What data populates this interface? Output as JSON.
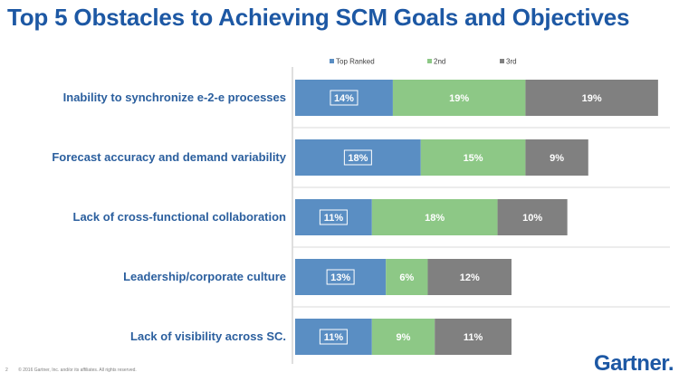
{
  "title": "Top 5 Obstacles to Achieving SCM Goals and Objectives",
  "footer": {
    "page": "2",
    "copyright": "© 2016 Gartner, Inc. and/or its affiliates. All rights reserved."
  },
  "brand": "Gartner.",
  "colors": {
    "top_ranked": "#5a8ec3",
    "second": "#8dc886",
    "third": "#808080",
    "title": "#1d58a4"
  },
  "chart_data": {
    "type": "bar",
    "orientation": "horizontal",
    "stacked": true,
    "categories": [
      "Inability to synchronize e-2-e processes",
      "Forecast accuracy and demand variability",
      "Lack of cross-functional collaboration",
      "Leadership/corporate culture",
      "Lack of visibility across SC."
    ],
    "series": [
      {
        "name": "Top Ranked",
        "values": [
          14,
          18,
          11,
          13,
          11
        ],
        "labels": [
          "14%",
          "18%",
          "11%",
          "13%",
          "11%"
        ],
        "color": "#5a8ec3"
      },
      {
        "name": "2nd",
        "values": [
          19,
          15,
          18,
          6,
          9
        ],
        "labels": [
          "19%",
          "15%",
          "18%",
          "6%",
          "9%"
        ],
        "color": "#8dc886"
      },
      {
        "name": "3rd",
        "values": [
          19,
          9,
          10,
          12,
          11
        ],
        "labels": [
          "19%",
          "9%",
          "10%",
          "12%",
          "11%"
        ],
        "color": "#808080"
      }
    ],
    "xlim": [
      0,
      55
    ],
    "legend_position": "top",
    "grid": false
  }
}
